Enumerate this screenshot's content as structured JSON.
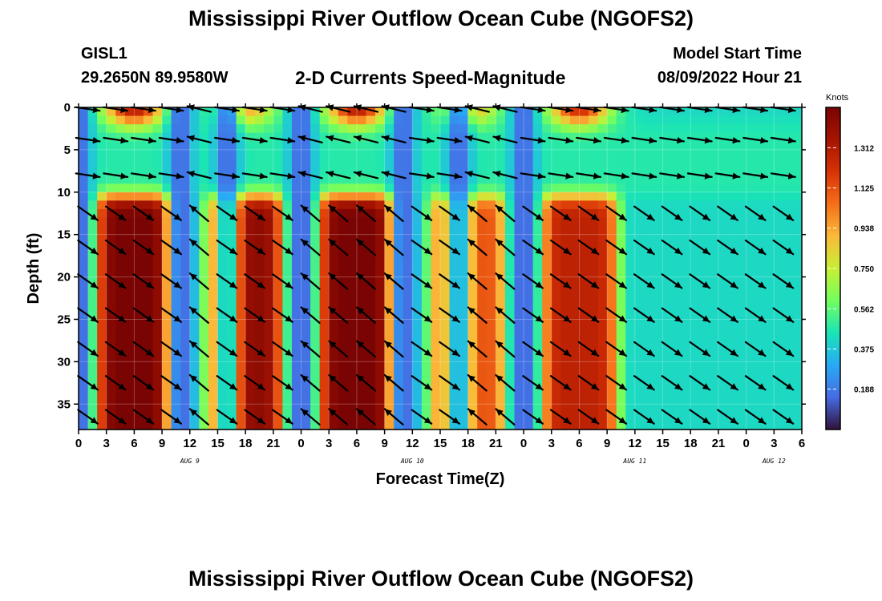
{
  "header": {
    "title": "Mississippi River Outflow Ocean Cube (NGOFS2)",
    "station_id": "GISL1",
    "station_coords": "29.2650N  89.9580W",
    "chart_title": "2-D Currents Speed-Magnitude",
    "model_start_label": "Model Start Time",
    "model_start_value": "08/09/2022 Hour 21"
  },
  "footer": {
    "title": "Mississippi River Outflow Ocean Cube (NGOFS2)"
  },
  "chart_data": {
    "type": "heatmap",
    "title": "2-D Currents Speed-Magnitude",
    "xlabel": "Forecast Time(Z)",
    "ylabel": "Depth (ft)",
    "x_range_hours": [
      0,
      78
    ],
    "x_tick_labels": [
      "0",
      "3",
      "6",
      "9",
      "12",
      "15",
      "18",
      "21",
      "0",
      "3",
      "6",
      "9",
      "12",
      "15",
      "18",
      "21",
      "0",
      "3",
      "6",
      "9",
      "12",
      "15",
      "18",
      "21",
      "0",
      "3",
      "6"
    ],
    "date_labels": [
      {
        "text": "AUG 9",
        "hour": 12
      },
      {
        "text": "AUG 10",
        "hour": 36
      },
      {
        "text": "AUG 11",
        "hour": 60
      },
      {
        "text": "AUG 12",
        "hour": 75
      }
    ],
    "y_range_ft": [
      0,
      38
    ],
    "y_reversed": true,
    "y_ticks": [
      0,
      5,
      10,
      15,
      20,
      25,
      30,
      35
    ],
    "colorbar": {
      "unit": "Knots",
      "range": [
        0,
        1.5
      ],
      "ticks": [
        "0.188",
        "0.375",
        "0.562",
        "0.750",
        "0.938",
        "1.125",
        "1.312"
      ],
      "colormap": "turbo"
    },
    "speed_peaks_knots": [
      {
        "hour": 6,
        "surface": 1.2,
        "bottom": 1.45
      },
      {
        "hour": 18,
        "surface": 0.7,
        "bottom": 1.35
      },
      {
        "hour": 30,
        "surface": 1.2,
        "bottom": 1.45
      },
      {
        "hour": 42,
        "surface": 0.7,
        "bottom": 0.95
      },
      {
        "hour": 54,
        "surface": 1.1,
        "bottom": 1.15
      }
    ],
    "slack_hours": [
      0,
      11,
      16,
      24,
      35,
      41,
      48
    ]
  }
}
